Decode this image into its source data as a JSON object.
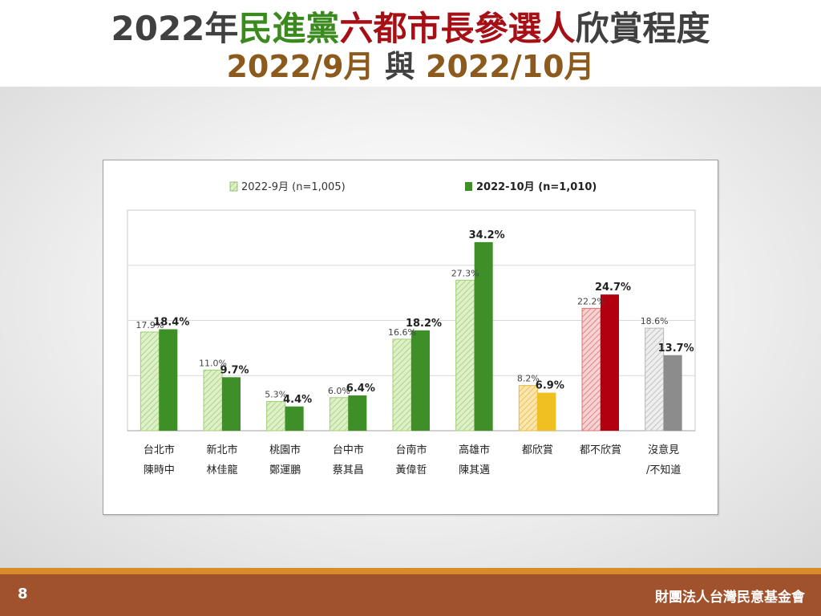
{
  "title": {
    "line1": [
      {
        "text": "2022年",
        "color": "#404040"
      },
      {
        "text": "民進黨",
        "color": "#3a8a1e"
      },
      {
        "text": "六都市長參選人",
        "color": "#a50f15"
      },
      {
        "text": "欣賞程度",
        "color": "#404040"
      }
    ],
    "line2": [
      {
        "text": "2022/9月",
        "color": "#8b5a1c"
      },
      {
        "text": " 與 ",
        "color": "#404040"
      },
      {
        "text": "2022/10月",
        "color": "#8b5a1c"
      }
    ]
  },
  "footer": {
    "page_number": "8",
    "org": "財團法人台灣民意基金會"
  },
  "chart_data": {
    "type": "bar",
    "ylim": [
      0,
      40
    ],
    "grid": "horizontal",
    "legend_position": "top",
    "series": [
      {
        "name": "2022-9月  (n=1,005)",
        "style": "hatched-light"
      },
      {
        "name": "2022-10月  (n=1,010)",
        "style": "solid-bold"
      }
    ],
    "categories": [
      {
        "line1": "台北市",
        "line2": "陳時中",
        "sep": 17.9,
        "oct": 18.4,
        "sep_label": "17.9%",
        "oct_label": "18.4%",
        "color_sep": "#dff0c8",
        "color_oct": "#3f8f28",
        "hatch": "#9fcf78"
      },
      {
        "line1": "新北市",
        "line2": "林佳龍",
        "sep": 11.0,
        "oct": 9.7,
        "sep_label": "11.0%",
        "oct_label": "9.7%",
        "color_sep": "#dff0c8",
        "color_oct": "#3f8f28",
        "hatch": "#9fcf78"
      },
      {
        "line1": "桃園市",
        "line2": "鄭運鵬",
        "sep": 5.3,
        "oct": 4.4,
        "sep_label": "5.3%",
        "oct_label": "4.4%",
        "color_sep": "#dff0c8",
        "color_oct": "#3f8f28",
        "hatch": "#9fcf78"
      },
      {
        "line1": "台中市",
        "line2": "蔡其昌",
        "sep": 6.0,
        "oct": 6.4,
        "sep_label": "6.0%",
        "oct_label": "6.4%",
        "color_sep": "#dff0c8",
        "color_oct": "#3f8f28",
        "hatch": "#9fcf78"
      },
      {
        "line1": "台南市",
        "line2": "黃偉哲",
        "sep": 16.6,
        "oct": 18.2,
        "sep_label": "16.6%",
        "oct_label": "18.2%",
        "color_sep": "#dff0c8",
        "color_oct": "#3f8f28",
        "hatch": "#9fcf78"
      },
      {
        "line1": "高雄市",
        "line2": "陳其邁",
        "sep": 27.3,
        "oct": 34.2,
        "sep_label": "27.3%",
        "oct_label": "34.2%",
        "color_sep": "#dff0c8",
        "color_oct": "#3f8f28",
        "hatch": "#9fcf78"
      },
      {
        "line1": "都欣賞",
        "line2": "",
        "sep": 8.2,
        "oct": 6.9,
        "sep_label": "8.2%",
        "oct_label": "6.9%",
        "color_sep": "#fbe6b0",
        "color_oct": "#f0c020",
        "hatch": "#e8b840"
      },
      {
        "line1": "都不欣賞",
        "line2": "",
        "sep": 22.2,
        "oct": 24.7,
        "sep_label": "22.2%",
        "oct_label": "24.7%",
        "color_sep": "#f6d3d3",
        "color_oct": "#b2000f",
        "hatch": "#e07070"
      },
      {
        "line1": "沒意見",
        "line2": "/不知道",
        "sep": 18.6,
        "oct": 13.7,
        "sep_label": "18.6%",
        "oct_label": "13.7%",
        "color_sep": "#eeeeee",
        "color_oct": "#8c8c8c",
        "hatch": "#b8b8b8"
      }
    ],
    "legend_colors": {
      "sep": "#dff0c8",
      "sep_hatch": "#9fcf78",
      "oct": "#3f8f28"
    }
  }
}
